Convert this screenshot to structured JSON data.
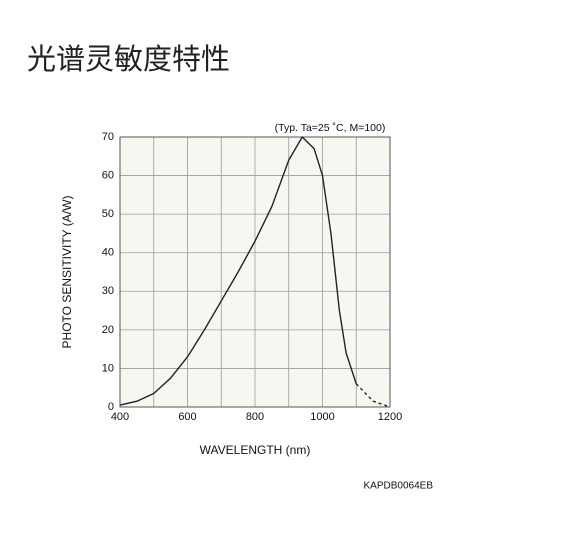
{
  "page_title": "光谱灵敏度特性",
  "chart_data": {
    "type": "line",
    "annotation": "(Typ. Ta=25 ˚C, M=100)",
    "x_label": "WAVELENGTH (nm)",
    "y_label": "PHOTO SENSITIVITY (A/W)",
    "code": "KAPDB0064EB",
    "xlim": [
      400,
      1200
    ],
    "ylim": [
      0,
      70
    ],
    "xticks": [
      400,
      600,
      800,
      1000,
      1200
    ],
    "x_minor_grid": [
      500,
      700,
      900,
      1100
    ],
    "yticks": [
      0,
      10,
      20,
      30,
      40,
      50,
      60,
      70
    ],
    "grid": true,
    "series": [
      {
        "color": "#222222",
        "dash": false,
        "x": [
          400,
          450,
          500,
          550,
          600,
          650,
          700,
          750,
          800,
          850,
          900,
          940,
          975,
          1000,
          1025,
          1050,
          1070,
          1100
        ],
        "values": [
          0.5,
          1.5,
          3.5,
          7.5,
          13,
          20,
          27.5,
          35,
          43,
          52,
          64,
          70,
          67,
          60,
          45,
          25,
          14,
          6
        ]
      },
      {
        "color": "#222222",
        "dash": true,
        "x": [
          1100,
          1150,
          1200
        ],
        "values": [
          6,
          1.5,
          0
        ]
      }
    ]
  }
}
